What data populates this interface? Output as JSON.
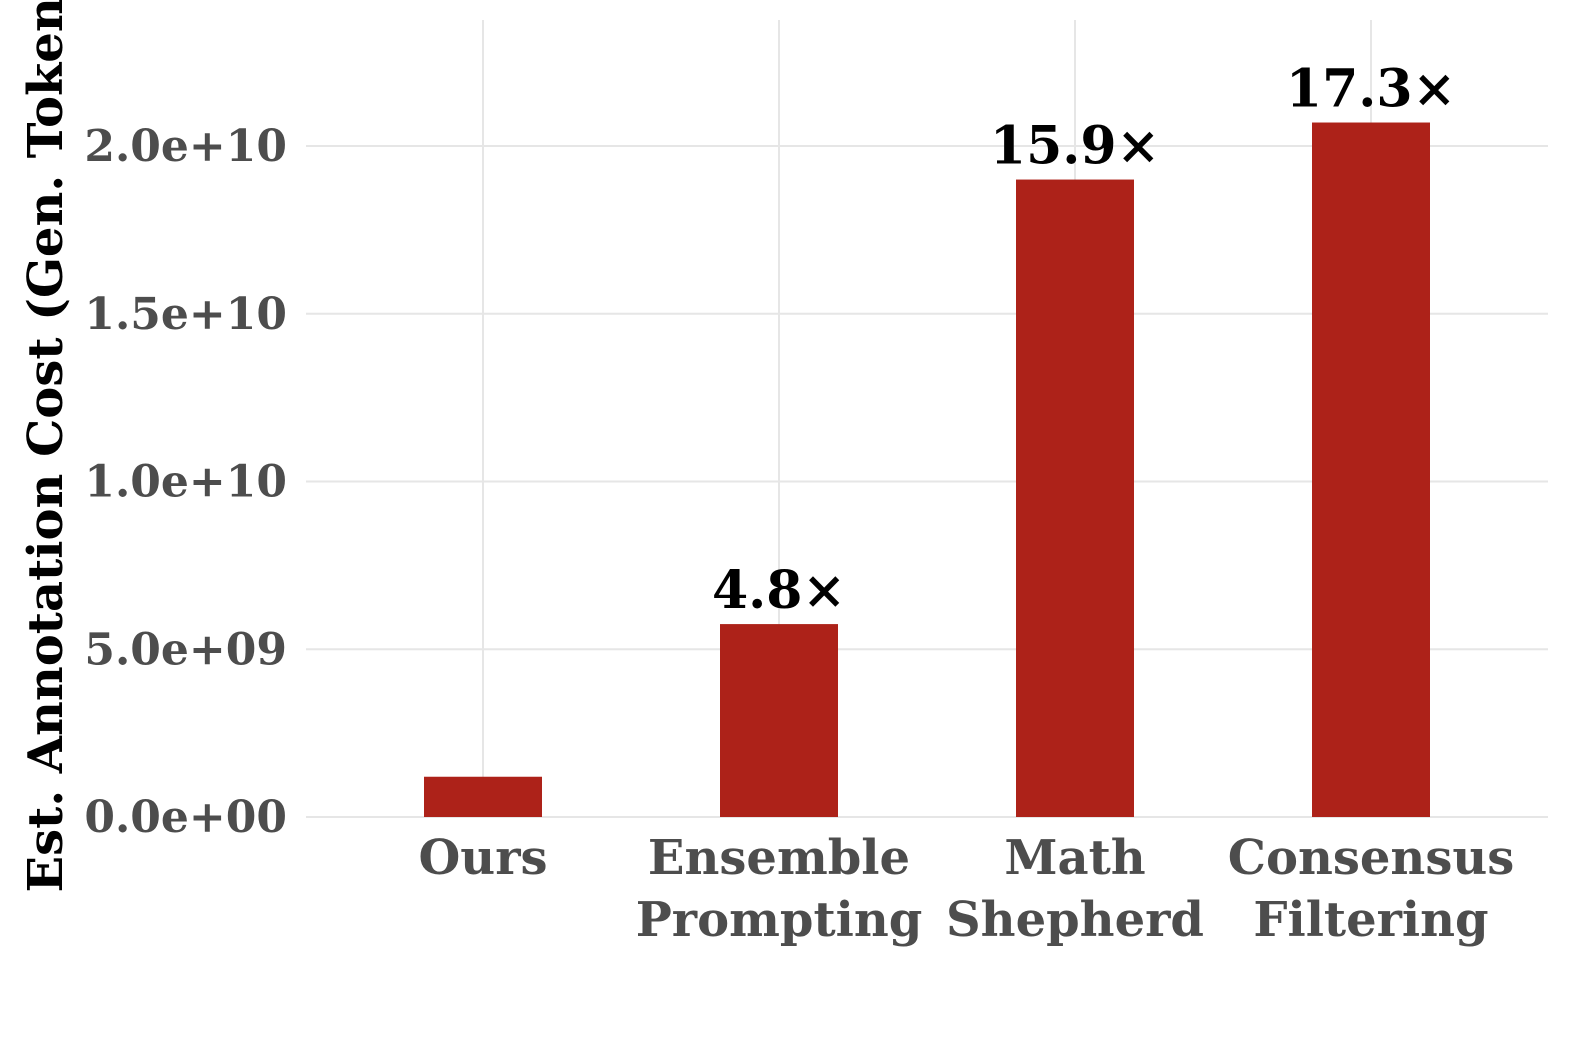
{
  "chart_data": {
    "type": "bar",
    "categories": [
      "Ours",
      "Ensemble\nPrompting",
      "Math\nShepherd",
      "Consensus\nFiltering"
    ],
    "values": [
      1200000000.0,
      5750000000.0,
      19000000000.0,
      20700000000.0
    ],
    "data_labels": [
      "",
      "4.8×",
      "15.9×",
      "17.3×"
    ],
    "title": "",
    "xlabel": "",
    "ylabel": "Est. Annotation Cost (Gen. Tokens)",
    "ylim": [
      0,
      24000000000.0
    ],
    "yticks": [
      0,
      5000000000.0,
      10000000000.0,
      15000000000.0,
      20000000000.0
    ],
    "ytick_labels": [
      "0.0e+00",
      "5.0e+09",
      "1.0e+10",
      "1.5e+10",
      "2.0e+10"
    ],
    "grid": true,
    "legend": "none",
    "bar_color": "#ad2219"
  }
}
